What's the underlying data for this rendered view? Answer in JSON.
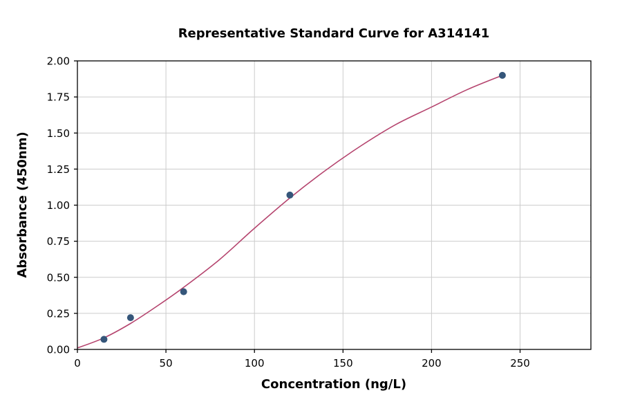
{
  "chart_data": {
    "type": "scatter",
    "title": "Representative Standard Curve for A314141",
    "xlabel": "Concentration (ng/L)",
    "ylabel": "Absorbance (450nm)",
    "xlim": [
      0,
      290
    ],
    "ylim": [
      0,
      2.0
    ],
    "x_ticks": [
      0,
      50,
      100,
      150,
      200,
      250
    ],
    "y_ticks": [
      0.0,
      0.25,
      0.5,
      0.75,
      1.0,
      1.25,
      1.5,
      1.75,
      2.0
    ],
    "grid": true,
    "legend": "none",
    "points": [
      {
        "x": 15,
        "y": 0.07
      },
      {
        "x": 30,
        "y": 0.22
      },
      {
        "x": 60,
        "y": 0.4
      },
      {
        "x": 120,
        "y": 1.07
      },
      {
        "x": 240,
        "y": 1.9
      }
    ],
    "fit_curve": [
      {
        "x": 0,
        "y": 0.01
      },
      {
        "x": 15,
        "y": 0.08
      },
      {
        "x": 30,
        "y": 0.18
      },
      {
        "x": 45,
        "y": 0.3
      },
      {
        "x": 60,
        "y": 0.43
      },
      {
        "x": 80,
        "y": 0.62
      },
      {
        "x": 100,
        "y": 0.84
      },
      {
        "x": 120,
        "y": 1.05
      },
      {
        "x": 140,
        "y": 1.24
      },
      {
        "x": 160,
        "y": 1.41
      },
      {
        "x": 180,
        "y": 1.56
      },
      {
        "x": 200,
        "y": 1.68
      },
      {
        "x": 220,
        "y": 1.8
      },
      {
        "x": 240,
        "y": 1.9
      }
    ],
    "colors": {
      "point": "#35567a",
      "curve": "#b5446e",
      "grid": "#cccccc",
      "spine": "#000000"
    }
  }
}
